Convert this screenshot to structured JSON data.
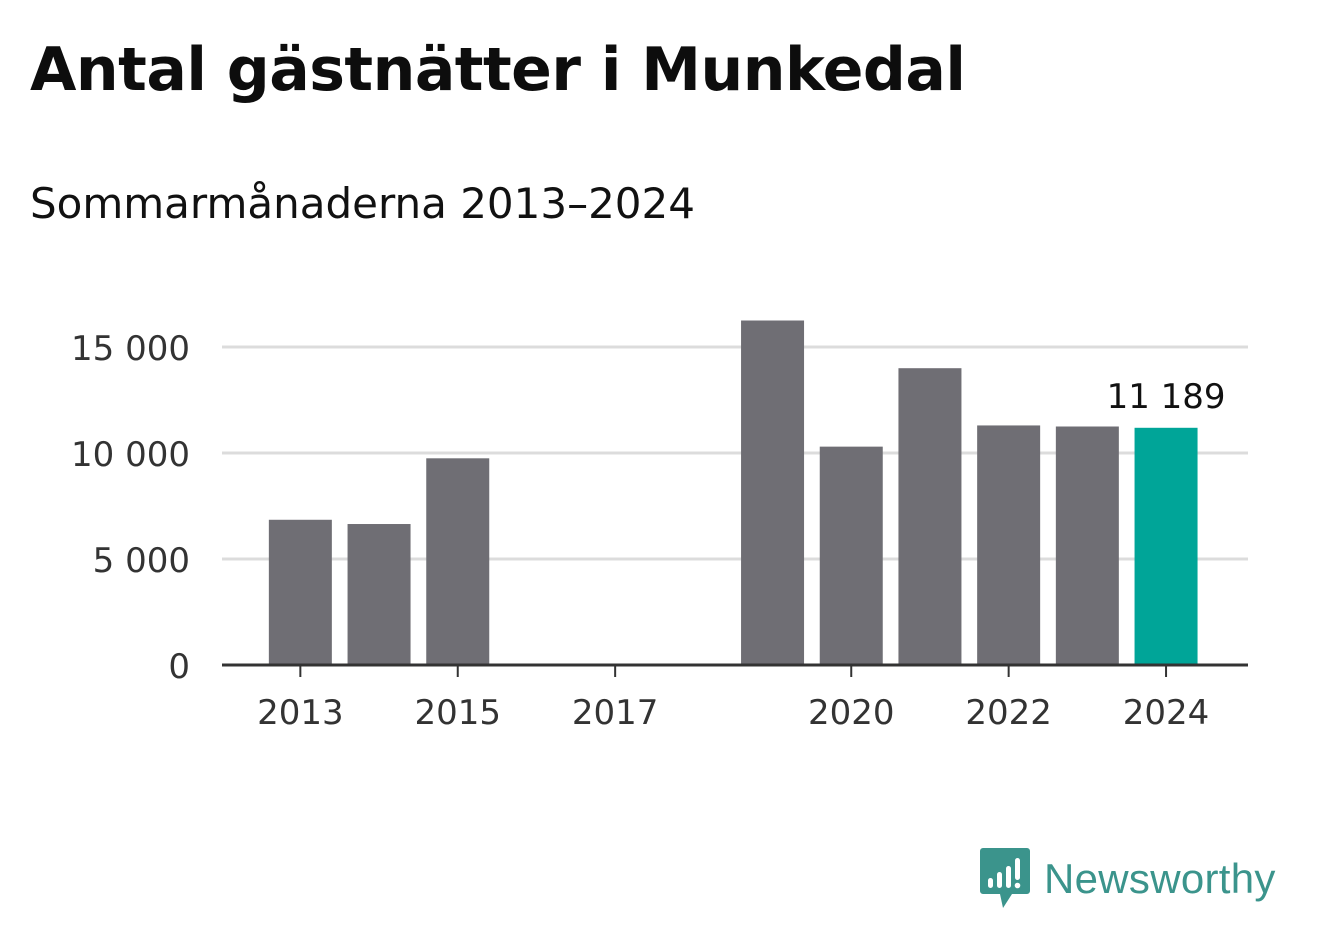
{
  "header": {
    "title": "Antal gästnätter i Munkedal",
    "subtitle": "Sommarmånaderna 2013–2024"
  },
  "brand": {
    "name": "Newsworthy",
    "icon": "bar-chart-speech-bubble-icon",
    "color": "#3b948c"
  },
  "chart_data": {
    "type": "bar",
    "categories": [
      "2013",
      "2014",
      "2015",
      "2016",
      "2017",
      "2018",
      "2019",
      "2020",
      "2021",
      "2022",
      "2023",
      "2024"
    ],
    "values": [
      6850,
      6650,
      9750,
      null,
      null,
      null,
      16250,
      10300,
      14000,
      11300,
      11250,
      11189
    ],
    "xtick_labels": [
      "2013",
      "2015",
      "2017",
      "2020",
      "2022",
      "2024"
    ],
    "yticks": [
      0,
      5000,
      10000,
      15000
    ],
    "ytick_labels": [
      "0",
      "5 000",
      "10 000",
      "15 000"
    ],
    "ylim": [
      0,
      16500
    ],
    "highlight": {
      "index": 11,
      "label": "11 189",
      "color": "#00a598"
    },
    "bar_color": "#6f6e74",
    "grid": true,
    "xlabel": "",
    "ylabel": ""
  }
}
